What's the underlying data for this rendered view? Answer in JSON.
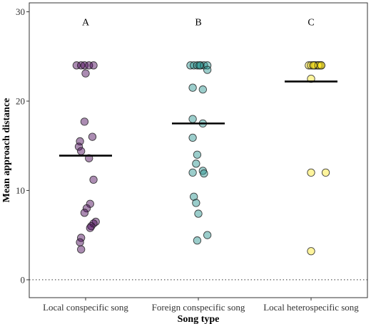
{
  "chart_data": {
    "type": "scatter",
    "title": "",
    "xlabel": "Song type",
    "ylabel": "Mean approach distance",
    "ylim": [
      -2,
      31
    ],
    "yticks": [
      0,
      10,
      20,
      30
    ],
    "reference_line": 0,
    "grid": false,
    "legend": "none",
    "categories": [
      "Local conspecific song",
      "Foreign conspecific song",
      "Local heterospecific song"
    ],
    "group_letters": [
      "A",
      "B",
      "C"
    ],
    "colors": [
      "#440154",
      "#21908c",
      "#fde725"
    ],
    "means": [
      13.9,
      17.5,
      22.2
    ],
    "series": [
      {
        "category": "Local conspecific song",
        "points": [
          {
            "offset": -0.08,
            "y": 24.0
          },
          {
            "offset": -0.04,
            "y": 24.0
          },
          {
            "offset": -0.01,
            "y": 24.0
          },
          {
            "offset": 0.03,
            "y": 24.0
          },
          {
            "offset": 0.07,
            "y": 24.0
          },
          {
            "offset": 0.0,
            "y": 23.1
          },
          {
            "offset": -0.01,
            "y": 17.7
          },
          {
            "offset": 0.06,
            "y": 16.0
          },
          {
            "offset": -0.05,
            "y": 15.5
          },
          {
            "offset": -0.06,
            "y": 14.9
          },
          {
            "offset": -0.04,
            "y": 14.4
          },
          {
            "offset": 0.03,
            "y": 13.6
          },
          {
            "offset": 0.07,
            "y": 11.2
          },
          {
            "offset": 0.04,
            "y": 8.5
          },
          {
            "offset": 0.01,
            "y": 8.0
          },
          {
            "offset": -0.01,
            "y": 7.5
          },
          {
            "offset": 0.09,
            "y": 6.5
          },
          {
            "offset": 0.07,
            "y": 6.3
          },
          {
            "offset": 0.05,
            "y": 6.0
          },
          {
            "offset": 0.04,
            "y": 5.8
          },
          {
            "offset": -0.04,
            "y": 4.7
          },
          {
            "offset": -0.05,
            "y": 4.2
          },
          {
            "offset": -0.04,
            "y": 3.4
          }
        ]
      },
      {
        "category": "Foreign conspecific song",
        "points": [
          {
            "offset": -0.07,
            "y": 24.0
          },
          {
            "offset": -0.04,
            "y": 24.0
          },
          {
            "offset": -0.01,
            "y": 24.0
          },
          {
            "offset": 0.02,
            "y": 24.0
          },
          {
            "offset": 0.05,
            "y": 24.0
          },
          {
            "offset": 0.08,
            "y": 24.0
          },
          {
            "offset": 0.01,
            "y": 24.0
          },
          {
            "offset": 0.08,
            "y": 23.5
          },
          {
            "offset": -0.05,
            "y": 21.5
          },
          {
            "offset": 0.04,
            "y": 21.3
          },
          {
            "offset": -0.05,
            "y": 18.0
          },
          {
            "offset": 0.04,
            "y": 17.5
          },
          {
            "offset": -0.05,
            "y": 15.9
          },
          {
            "offset": -0.01,
            "y": 14.0
          },
          {
            "offset": -0.02,
            "y": 13.0
          },
          {
            "offset": 0.04,
            "y": 12.2
          },
          {
            "offset": -0.05,
            "y": 12.0
          },
          {
            "offset": 0.05,
            "y": 11.9
          },
          {
            "offset": -0.04,
            "y": 9.3
          },
          {
            "offset": -0.02,
            "y": 8.6
          },
          {
            "offset": 0.0,
            "y": 7.4
          },
          {
            "offset": 0.08,
            "y": 5.0
          },
          {
            "offset": -0.01,
            "y": 4.4
          }
        ]
      },
      {
        "category": "Local heterospecific song",
        "points": [
          {
            "offset": -0.02,
            "y": 24.0
          },
          {
            "offset": 0.0,
            "y": 24.0
          },
          {
            "offset": 0.02,
            "y": 24.0
          },
          {
            "offset": 0.04,
            "y": 24.0
          },
          {
            "offset": 0.06,
            "y": 24.0
          },
          {
            "offset": 0.08,
            "y": 24.0
          },
          {
            "offset": 0.09,
            "y": 24.0
          },
          {
            "offset": 0.03,
            "y": 24.0
          },
          {
            "offset": 0.06,
            "y": 24.0
          },
          {
            "offset": 0.07,
            "y": 24.0
          },
          {
            "offset": 0.02,
            "y": 24.0
          },
          {
            "offset": 0.09,
            "y": 24.0
          },
          {
            "offset": 0.0,
            "y": 22.5
          },
          {
            "offset": 0.0,
            "y": 12.0
          },
          {
            "offset": 0.13,
            "y": 12.0
          },
          {
            "offset": 0.0,
            "y": 3.2
          }
        ]
      }
    ]
  }
}
